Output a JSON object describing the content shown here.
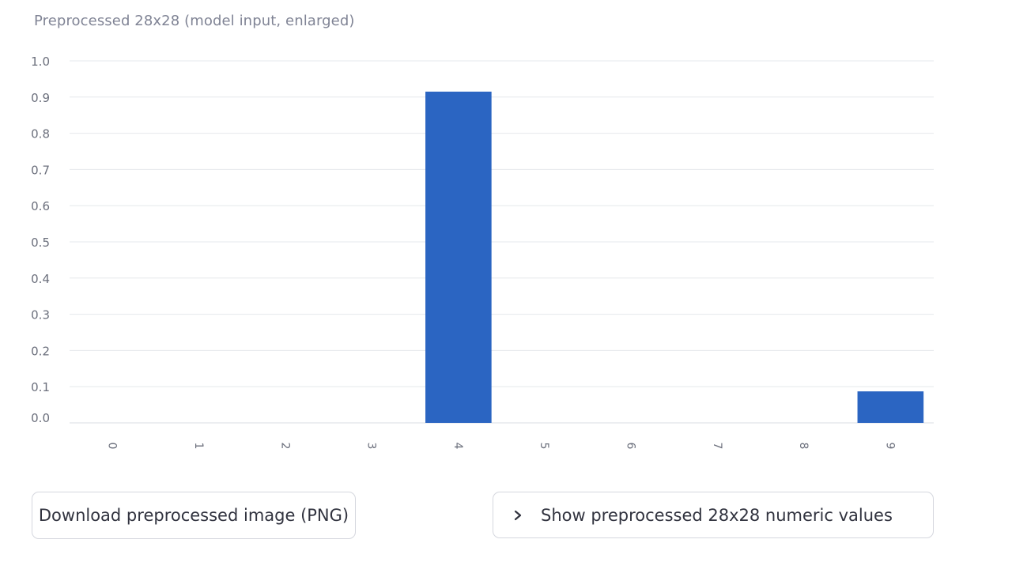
{
  "caption": "Preprocessed 28x28 (model input, enlarged)",
  "chart_data": {
    "type": "bar",
    "categories": [
      "0",
      "1",
      "2",
      "3",
      "4",
      "5",
      "6",
      "7",
      "8",
      "9"
    ],
    "values": [
      0,
      0,
      0,
      0,
      0.915,
      0,
      0,
      0,
      0,
      0.087
    ],
    "ylim": [
      0,
      1
    ],
    "yticks": [
      "0.0",
      "0.1",
      "0.2",
      "0.3",
      "0.4",
      "0.5",
      "0.6",
      "0.7",
      "0.8",
      "0.9",
      "1.0"
    ],
    "xlabel": "",
    "ylabel": "",
    "grid": true,
    "bar_color": "#2b65c2"
  },
  "buttons": {
    "download_label": "Download preprocessed image (PNG)",
    "expander_label": "Show preprocessed 28x28 numeric values",
    "expander_icon": "chevron-right-icon"
  }
}
